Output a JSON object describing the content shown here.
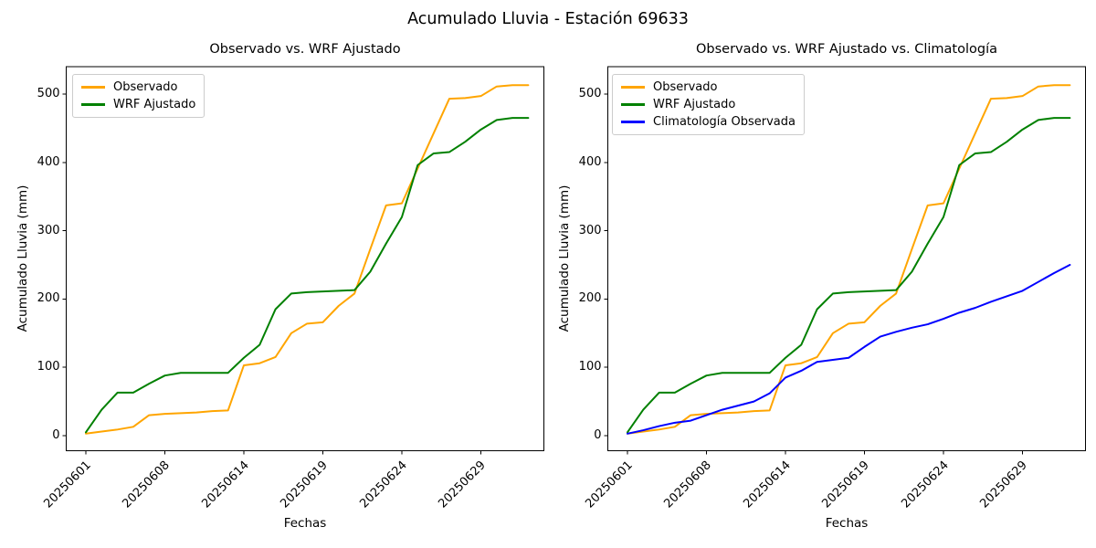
{
  "figure_title": "Acumulado Lluvia - Estación 69633",
  "chart_data": [
    {
      "type": "line",
      "title": "Observado vs. WRF Ajustado",
      "xlabel": "Fechas",
      "ylabel": "Acumulado Lluvia (mm)",
      "x_tick_labels": [
        "20250601",
        "20250608",
        "20250614",
        "20250619",
        "20250624",
        "20250629"
      ],
      "x_tick_indices": [
        0,
        5,
        10,
        15,
        20,
        25
      ],
      "y_ticks": [
        0,
        100,
        200,
        300,
        400,
        500
      ],
      "ylim": [
        -22,
        540
      ],
      "n_points": 29,
      "grid": false,
      "legend_position": "upper left",
      "series": [
        {
          "name": "Observado",
          "color": "#FFA500",
          "values": [
            3,
            6,
            9,
            13,
            30,
            32,
            33,
            34,
            36,
            37,
            103,
            106,
            115,
            150,
            164,
            166,
            190,
            208,
            273,
            337,
            340,
            391,
            442,
            493,
            494,
            497,
            511,
            513,
            513
          ]
        },
        {
          "name": "WRF Ajustado",
          "color": "#008000",
          "values": [
            5,
            38,
            63,
            63,
            76,
            88,
            92,
            92,
            92,
            92,
            114,
            133,
            185,
            208,
            210,
            211,
            212,
            213,
            240,
            281,
            320,
            396,
            413,
            415,
            430,
            448,
            462,
            465,
            465
          ]
        }
      ]
    },
    {
      "type": "line",
      "title": "Observado vs. WRF Ajustado vs. Climatología",
      "xlabel": "Fechas",
      "ylabel": "Acumulado Lluvia (mm)",
      "x_tick_labels": [
        "20250601",
        "20250608",
        "20250614",
        "20250619",
        "20250624",
        "20250629"
      ],
      "x_tick_indices": [
        0,
        5,
        10,
        15,
        20,
        25
      ],
      "y_ticks": [
        0,
        100,
        200,
        300,
        400,
        500
      ],
      "ylim": [
        -22,
        540
      ],
      "n_points": 29,
      "grid": false,
      "legend_position": "upper left",
      "series": [
        {
          "name": "Observado",
          "color": "#FFA500",
          "values": [
            3,
            6,
            9,
            13,
            30,
            32,
            33,
            34,
            36,
            37,
            103,
            106,
            115,
            150,
            164,
            166,
            190,
            208,
            273,
            337,
            340,
            391,
            442,
            493,
            494,
            497,
            511,
            513,
            513
          ]
        },
        {
          "name": "WRF Ajustado",
          "color": "#008000",
          "values": [
            5,
            38,
            63,
            63,
            76,
            88,
            92,
            92,
            92,
            92,
            114,
            133,
            185,
            208,
            210,
            211,
            212,
            213,
            240,
            281,
            320,
            396,
            413,
            415,
            430,
            448,
            462,
            465,
            465
          ]
        },
        {
          "name": "Climatología Observada",
          "color": "#0000FF",
          "values": [
            3,
            8,
            14,
            19,
            22,
            30,
            38,
            44,
            50,
            62,
            85,
            95,
            108,
            111,
            114,
            130,
            145,
            152,
            158,
            163,
            171,
            180,
            187,
            196,
            204,
            212,
            225,
            238,
            250
          ]
        }
      ]
    }
  ]
}
